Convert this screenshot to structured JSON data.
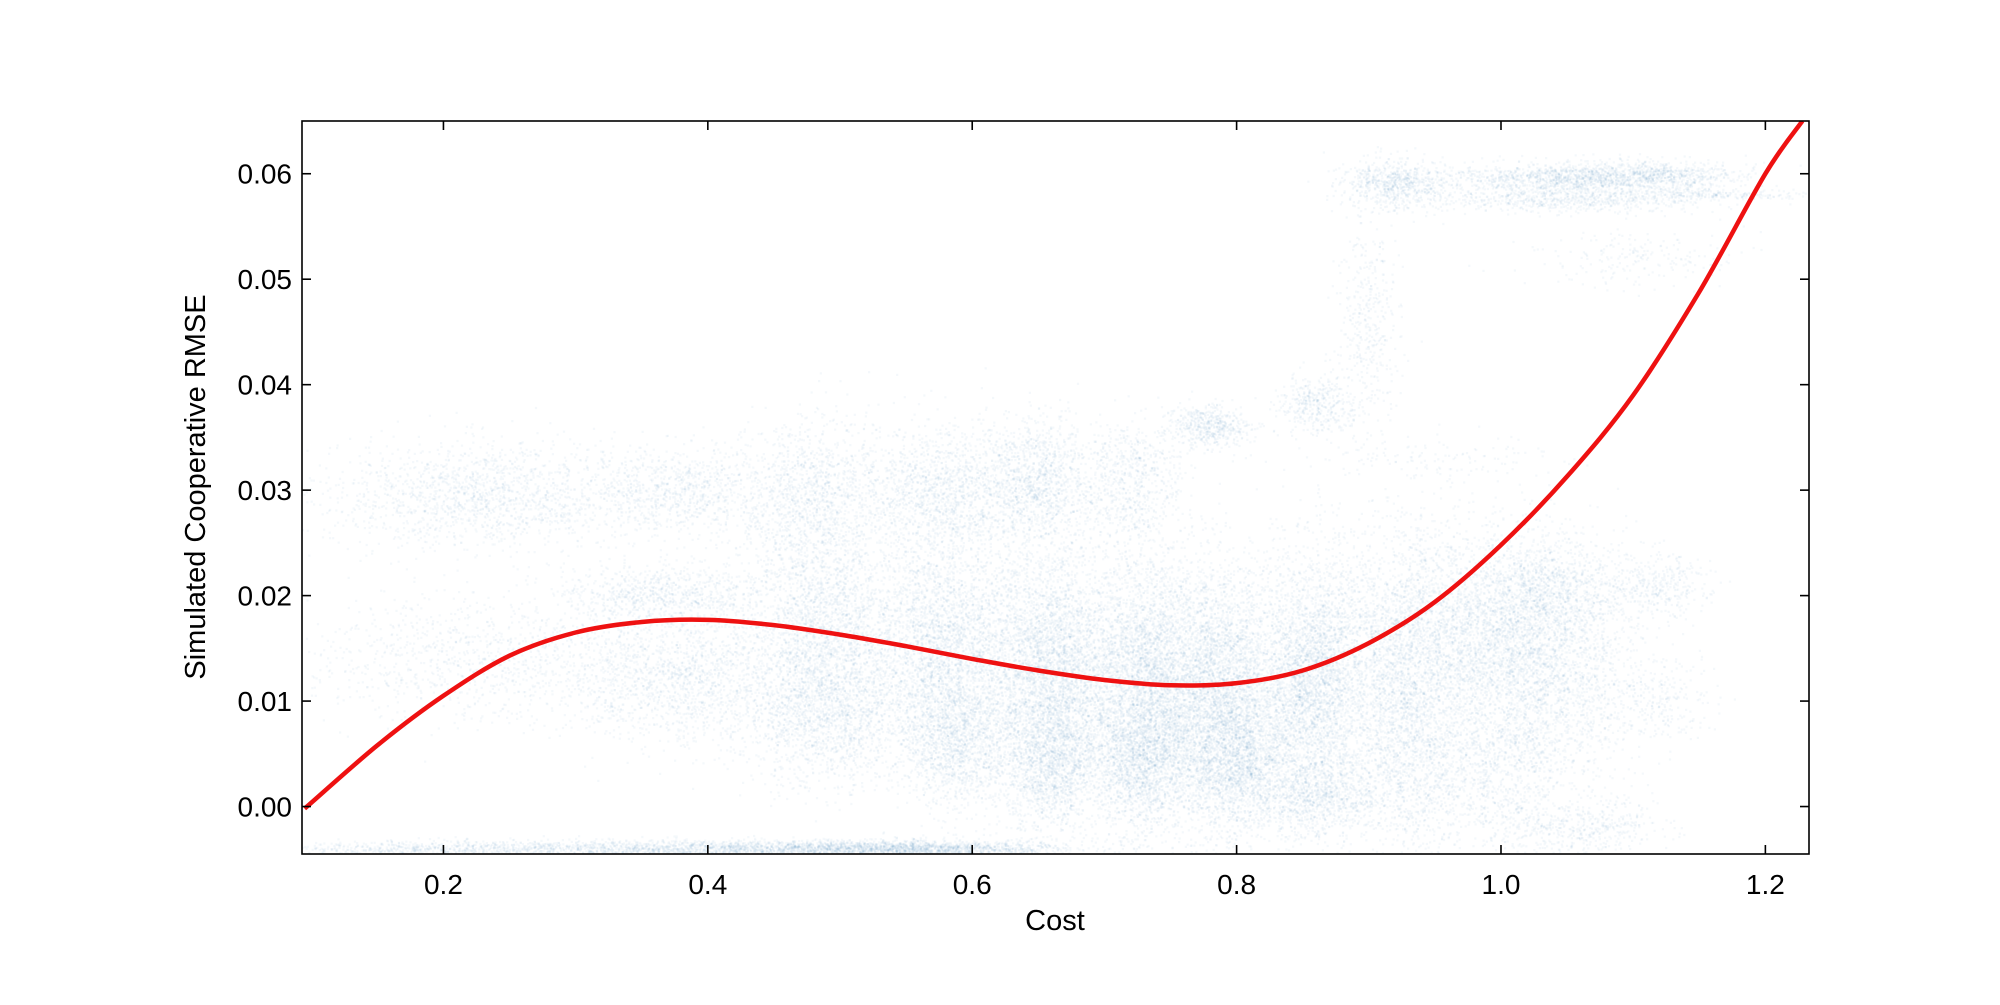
{
  "chart_data": {
    "type": "scatter",
    "title": "",
    "xlabel": "Cost",
    "ylabel": "Simulated Cooperative RMSE",
    "xlim": [
      0.093,
      1.233
    ],
    "ylim": [
      -0.0045,
      0.065
    ],
    "xticks": [
      0.2,
      0.4,
      0.6,
      0.8,
      1.0,
      1.2
    ],
    "xtick_labels": [
      "0.2",
      "0.4",
      "0.6",
      "0.8",
      "1.0",
      "1.2"
    ],
    "yticks": [
      0.0,
      0.01,
      0.02,
      0.03,
      0.04,
      0.05,
      0.06
    ],
    "ytick_labels": [
      "0.00",
      "0.01",
      "0.02",
      "0.03",
      "0.04",
      "0.05",
      "0.06"
    ],
    "grid": false,
    "legend": "none",
    "scatter_color": "#1f77b4",
    "scatter_alpha": 0.05,
    "fit_color": "#ee1111",
    "clusters": [
      {
        "x": 0.23,
        "y": 0.0295,
        "sx": 0.06,
        "sy": 0.0025,
        "n": 1600
      },
      {
        "x": 0.22,
        "y": 0.014,
        "sx": 0.07,
        "sy": 0.003,
        "n": 1000
      },
      {
        "x": 0.2,
        "y": -0.004,
        "sx": 0.06,
        "sy": 0.0004,
        "n": 700
      },
      {
        "x": 0.38,
        "y": 0.03,
        "sx": 0.04,
        "sy": 0.002,
        "n": 900
      },
      {
        "x": 0.37,
        "y": 0.02,
        "sx": 0.04,
        "sy": 0.0015,
        "n": 900
      },
      {
        "x": 0.38,
        "y": 0.012,
        "sx": 0.05,
        "sy": 0.003,
        "n": 1700
      },
      {
        "x": 0.4,
        "y": -0.004,
        "sx": 0.08,
        "sy": 0.0004,
        "n": 1500
      },
      {
        "x": 0.48,
        "y": 0.029,
        "sx": 0.03,
        "sy": 0.004,
        "n": 1400
      },
      {
        "x": 0.49,
        "y": 0.016,
        "sx": 0.03,
        "sy": 0.005,
        "n": 2200
      },
      {
        "x": 0.49,
        "y": 0.008,
        "sx": 0.03,
        "sy": 0.003,
        "n": 1200
      },
      {
        "x": 0.55,
        "y": -0.004,
        "sx": 0.06,
        "sy": 0.0004,
        "n": 1600
      },
      {
        "x": 0.58,
        "y": 0.03,
        "sx": 0.03,
        "sy": 0.003,
        "n": 1300
      },
      {
        "x": 0.58,
        "y": 0.015,
        "sx": 0.03,
        "sy": 0.006,
        "n": 3200
      },
      {
        "x": 0.59,
        "y": 0.006,
        "sx": 0.02,
        "sy": 0.003,
        "n": 1200
      },
      {
        "x": 0.65,
        "y": 0.031,
        "sx": 0.02,
        "sy": 0.003,
        "n": 1100
      },
      {
        "x": 0.66,
        "y": 0.013,
        "sx": 0.025,
        "sy": 0.006,
        "n": 3600
      },
      {
        "x": 0.66,
        "y": 0.004,
        "sx": 0.02,
        "sy": 0.003,
        "n": 1300
      },
      {
        "x": 0.72,
        "y": 0.031,
        "sx": 0.02,
        "sy": 0.003,
        "n": 700
      },
      {
        "x": 0.73,
        "y": 0.012,
        "sx": 0.025,
        "sy": 0.006,
        "n": 3600
      },
      {
        "x": 0.73,
        "y": 0.004,
        "sx": 0.02,
        "sy": 0.003,
        "n": 1400
      },
      {
        "x": 0.78,
        "y": 0.036,
        "sx": 0.015,
        "sy": 0.001,
        "n": 500
      },
      {
        "x": 0.79,
        "y": 0.011,
        "sx": 0.025,
        "sy": 0.006,
        "n": 3800
      },
      {
        "x": 0.8,
        "y": 0.004,
        "sx": 0.02,
        "sy": 0.003,
        "n": 1400
      },
      {
        "x": 0.86,
        "y": 0.038,
        "sx": 0.015,
        "sy": 0.0015,
        "n": 400
      },
      {
        "x": 0.86,
        "y": 0.012,
        "sx": 0.02,
        "sy": 0.006,
        "n": 3200
      },
      {
        "x": 0.86,
        "y": 0.001,
        "sx": 0.025,
        "sy": 0.002,
        "n": 900
      },
      {
        "x": 0.9,
        "y": 0.046,
        "sx": 0.012,
        "sy": 0.005,
        "n": 400
      },
      {
        "x": 0.93,
        "y": 0.015,
        "sx": 0.025,
        "sy": 0.006,
        "n": 2600
      },
      {
        "x": 0.93,
        "y": 0.003,
        "sx": 0.025,
        "sy": 0.004,
        "n": 1000
      },
      {
        "x": 0.92,
        "y": 0.059,
        "sx": 0.02,
        "sy": 0.0012,
        "n": 700
      },
      {
        "x": 1.0,
        "y": 0.016,
        "sx": 0.03,
        "sy": 0.005,
        "n": 2400
      },
      {
        "x": 1.0,
        "y": 0.004,
        "sx": 0.03,
        "sy": 0.004,
        "n": 1000
      },
      {
        "x": 1.05,
        "y": 0.0595,
        "sx": 0.05,
        "sy": 0.0008,
        "n": 1300
      },
      {
        "x": 1.05,
        "y": 0.0575,
        "sx": 0.05,
        "sy": 0.0006,
        "n": 600
      },
      {
        "x": 1.04,
        "y": 0.02,
        "sx": 0.03,
        "sy": 0.003,
        "n": 1200
      },
      {
        "x": 1.05,
        "y": 0.011,
        "sx": 0.03,
        "sy": 0.004,
        "n": 1000
      },
      {
        "x": 1.06,
        "y": -0.002,
        "sx": 0.03,
        "sy": 0.0015,
        "n": 500
      },
      {
        "x": 1.12,
        "y": 0.06,
        "sx": 0.03,
        "sy": 0.0006,
        "n": 500
      },
      {
        "x": 1.16,
        "y": 0.058,
        "sx": 0.04,
        "sy": 0.0003,
        "n": 250
      },
      {
        "x": 1.12,
        "y": 0.021,
        "sx": 0.02,
        "sy": 0.0015,
        "n": 350
      },
      {
        "x": 1.12,
        "y": 0.01,
        "sx": 0.02,
        "sy": 0.002,
        "n": 250
      },
      {
        "x": 1.1,
        "y": 0.052,
        "sx": 0.04,
        "sy": 0.0015,
        "n": 200
      },
      {
        "x": 0.95,
        "y": 0.033,
        "sx": 0.04,
        "sy": 0.001,
        "n": 120
      }
    ],
    "fit_curve": {
      "x": [
        0.095,
        0.15,
        0.2,
        0.25,
        0.3,
        0.35,
        0.4,
        0.45,
        0.5,
        0.55,
        0.6,
        0.65,
        0.7,
        0.75,
        0.8,
        0.85,
        0.9,
        0.95,
        1.0,
        1.05,
        1.1,
        1.15,
        1.2,
        1.228
      ],
      "y": [
        -0.0002,
        0.0058,
        0.0105,
        0.0143,
        0.0165,
        0.0175,
        0.0177,
        0.0172,
        0.0163,
        0.0152,
        0.014,
        0.0129,
        0.012,
        0.0115,
        0.0117,
        0.0129,
        0.0155,
        0.0194,
        0.0248,
        0.0313,
        0.039,
        0.0488,
        0.06,
        0.065
      ]
    }
  }
}
